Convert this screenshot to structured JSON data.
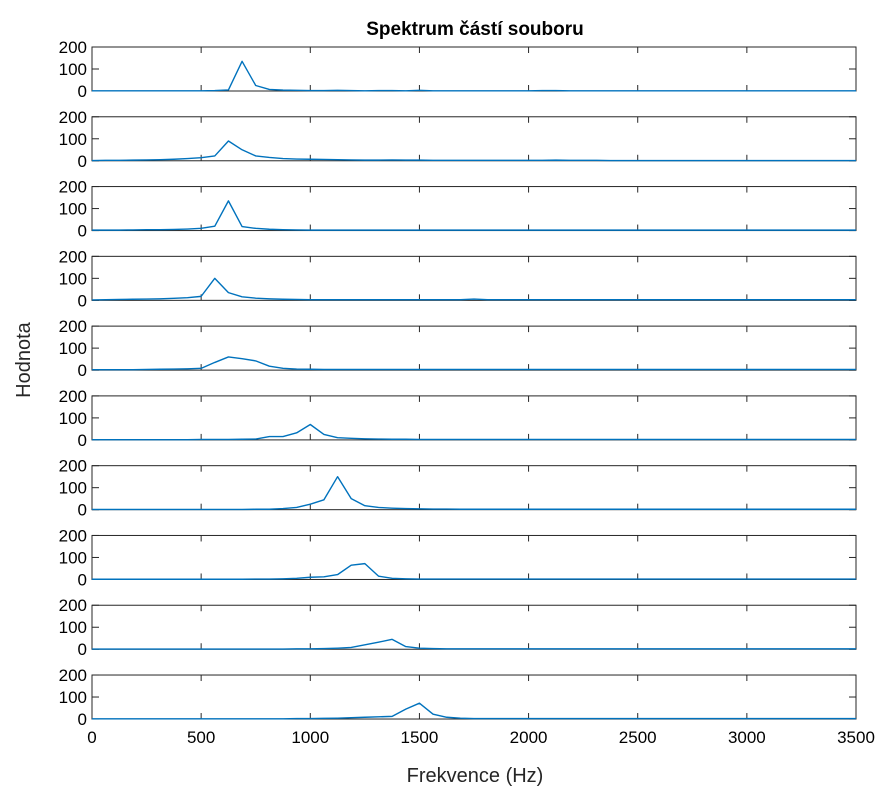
{
  "chart_data": {
    "type": "line",
    "title": "Spektrum částí souboru",
    "xlabel": "Frekvence (Hz)",
    "ylabel": "Hodnota",
    "xlim": [
      0,
      3500
    ],
    "ylim": [
      0,
      200
    ],
    "xticks": [
      0,
      500,
      1000,
      1500,
      2000,
      2500,
      3000,
      3500
    ],
    "yticks": [
      0,
      100,
      200
    ],
    "line_color": "#0072BD",
    "grid": false,
    "x": [
      0,
      62.5,
      125,
      187.5,
      250,
      312.5,
      375,
      437.5,
      500,
      562.5,
      625,
      687.5,
      750,
      812.5,
      875,
      937.5,
      1000,
      1062.5,
      1125,
      1187.5,
      1250,
      1312.5,
      1375,
      1437.5,
      1500,
      1562.5,
      1625,
      1687.5,
      1750,
      1812.5,
      1875,
      1937.5,
      2000,
      2062.5,
      2125,
      2187.5,
      2250,
      2312.5,
      2375,
      2437.5,
      2500,
      2562.5,
      2625,
      2687.5,
      2750,
      2812.5,
      2875,
      2937.5,
      3000,
      3062.5,
      3125,
      3187.5,
      3250,
      3312.5,
      3375,
      3437.5,
      3500
    ],
    "series": [
      {
        "values": [
          1,
          1,
          1,
          1,
          1,
          1,
          1,
          1,
          1,
          2,
          5,
          135,
          25,
          7,
          4,
          3,
          2,
          2,
          3,
          2,
          1,
          2,
          2,
          1,
          3,
          1,
          1,
          1,
          1,
          1,
          1,
          1,
          1,
          2,
          2,
          1,
          1,
          1,
          1,
          1,
          1,
          1,
          1,
          1,
          1,
          1,
          1,
          1,
          1,
          1,
          1,
          1,
          1,
          1,
          1,
          1,
          1
        ]
      },
      {
        "values": [
          1,
          2,
          2,
          3,
          4,
          5,
          7,
          10,
          14,
          22,
          90,
          50,
          22,
          15,
          10,
          8,
          7,
          6,
          5,
          4,
          3,
          3,
          4,
          3,
          3,
          2,
          2,
          2,
          2,
          2,
          2,
          2,
          2,
          2,
          3,
          2,
          2,
          2,
          1,
          1,
          1,
          1,
          1,
          1,
          1,
          1,
          1,
          1,
          1,
          1,
          1,
          1,
          1,
          1,
          1,
          1,
          1
        ]
      },
      {
        "values": [
          2,
          2,
          2,
          3,
          4,
          4,
          5,
          7,
          10,
          20,
          135,
          18,
          10,
          6,
          4,
          3,
          2,
          2,
          2,
          2,
          2,
          2,
          2,
          2,
          2,
          2,
          2,
          2,
          2,
          2,
          2,
          2,
          2,
          2,
          2,
          2,
          2,
          2,
          2,
          2,
          2,
          2,
          2,
          2,
          2,
          2,
          2,
          2,
          2,
          2,
          2,
          2,
          2,
          2,
          2,
          2,
          2
        ]
      },
      {
        "values": [
          2,
          3,
          4,
          5,
          6,
          7,
          9,
          12,
          18,
          100,
          35,
          16,
          10,
          7,
          5,
          4,
          3,
          3,
          3,
          3,
          3,
          3,
          3,
          3,
          3,
          3,
          3,
          3,
          6,
          3,
          3,
          3,
          3,
          3,
          3,
          3,
          3,
          3,
          3,
          3,
          3,
          3,
          3,
          3,
          3,
          3,
          3,
          3,
          3,
          3,
          3,
          3,
          3,
          3,
          3,
          3,
          3
        ]
      },
      {
        "values": [
          2,
          2,
          2,
          2,
          3,
          4,
          5,
          6,
          8,
          35,
          60,
          52,
          42,
          18,
          8,
          5,
          4,
          3,
          3,
          3,
          3,
          3,
          3,
          3,
          3,
          3,
          3,
          3,
          3,
          3,
          3,
          3,
          3,
          3,
          3,
          3,
          3,
          3,
          3,
          3,
          3,
          3,
          3,
          3,
          3,
          3,
          3,
          3,
          3,
          3,
          3,
          3,
          3,
          3,
          3,
          3,
          3
        ]
      },
      {
        "values": [
          1,
          1,
          1,
          1,
          1,
          1,
          1,
          1,
          2,
          2,
          2,
          3,
          4,
          15,
          15,
          32,
          70,
          25,
          10,
          7,
          5,
          4,
          3,
          3,
          2,
          2,
          2,
          2,
          2,
          2,
          2,
          2,
          2,
          2,
          2,
          2,
          2,
          2,
          2,
          2,
          2,
          2,
          2,
          2,
          2,
          2,
          2,
          2,
          2,
          2,
          2,
          2,
          2,
          2,
          2,
          2,
          2
        ]
      },
      {
        "values": [
          1,
          1,
          1,
          1,
          1,
          1,
          1,
          1,
          1,
          1,
          1,
          1,
          2,
          2,
          5,
          10,
          25,
          45,
          150,
          50,
          18,
          10,
          7,
          5,
          4,
          3,
          3,
          2,
          2,
          2,
          2,
          2,
          2,
          2,
          2,
          2,
          2,
          2,
          2,
          2,
          2,
          2,
          2,
          2,
          2,
          2,
          2,
          2,
          2,
          2,
          2,
          2,
          2,
          2,
          2,
          2,
          2
        ]
      },
      {
        "values": [
          1,
          1,
          1,
          1,
          1,
          1,
          1,
          1,
          1,
          1,
          1,
          1,
          2,
          2,
          3,
          5,
          10,
          12,
          22,
          65,
          72,
          15,
          5,
          3,
          2,
          2,
          2,
          2,
          2,
          2,
          2,
          2,
          2,
          2,
          2,
          2,
          2,
          2,
          2,
          2,
          2,
          2,
          2,
          2,
          2,
          2,
          2,
          2,
          2,
          2,
          2,
          2,
          2,
          2,
          2,
          2,
          2
        ]
      },
      {
        "values": [
          1,
          1,
          1,
          1,
          1,
          1,
          1,
          1,
          1,
          1,
          1,
          1,
          1,
          1,
          1,
          2,
          2,
          3,
          5,
          8,
          20,
          32,
          45,
          12,
          5,
          3,
          2,
          2,
          2,
          2,
          2,
          2,
          2,
          2,
          2,
          2,
          2,
          2,
          2,
          2,
          2,
          2,
          2,
          2,
          2,
          2,
          2,
          2,
          2,
          2,
          2,
          2,
          2,
          2,
          2,
          2,
          2
        ]
      },
      {
        "values": [
          1,
          1,
          1,
          1,
          1,
          1,
          1,
          1,
          1,
          1,
          1,
          1,
          1,
          1,
          1,
          2,
          2,
          3,
          4,
          6,
          8,
          10,
          12,
          45,
          72,
          22,
          8,
          4,
          2,
          2,
          2,
          2,
          2,
          2,
          2,
          2,
          2,
          2,
          2,
          2,
          2,
          2,
          2,
          2,
          2,
          2,
          2,
          2,
          2,
          2,
          2,
          2,
          2,
          2,
          2,
          2,
          2
        ]
      }
    ]
  }
}
